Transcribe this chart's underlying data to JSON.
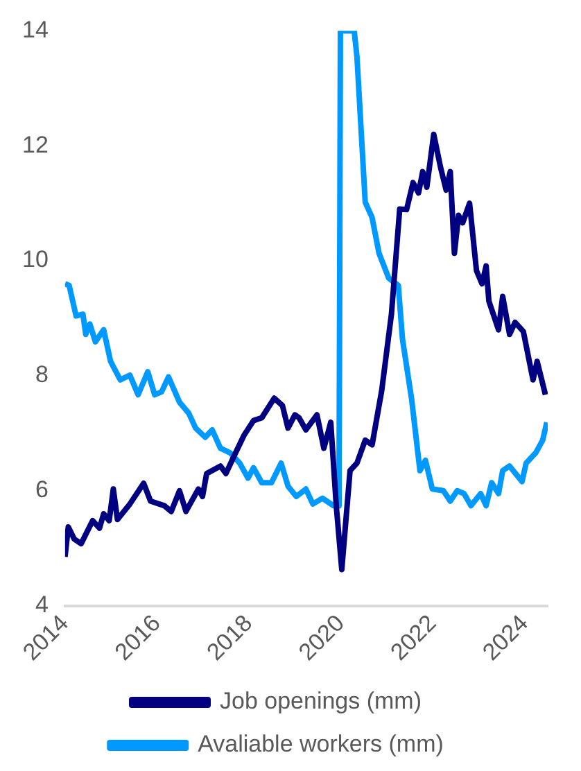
{
  "chart_data": {
    "type": "line",
    "xlim": [
      2014,
      2024.5
    ],
    "xticks": [
      2014,
      2016,
      2018,
      2020,
      2022,
      2024
    ],
    "ylim": [
      4,
      14
    ],
    "yticks": [
      4,
      6,
      8,
      10,
      12,
      14
    ],
    "grid": false,
    "legend": "bottom",
    "series": [
      {
        "name": "Job openings (mm)",
        "color": "#000080",
        "x": [
          2014.0,
          2014.07,
          2014.2,
          2014.35,
          2014.6,
          2014.75,
          2014.84,
          2014.96,
          2015.05,
          2015.14,
          2015.41,
          2015.71,
          2015.86,
          2016.16,
          2016.31,
          2016.49,
          2016.63,
          2016.9,
          2016.99,
          2017.08,
          2017.38,
          2017.5,
          2017.68,
          2017.89,
          2018.1,
          2018.28,
          2018.55,
          2018.73,
          2018.85,
          2019.0,
          2019.09,
          2019.24,
          2019.48,
          2019.63,
          2019.78,
          2019.9,
          2020.02,
          2020.2,
          2020.35,
          2020.53,
          2020.68,
          2020.89,
          2021.1,
          2021.28,
          2021.43,
          2021.57,
          2021.69,
          2021.78,
          2021.87,
          2022.02,
          2022.17,
          2022.29,
          2022.38,
          2022.47,
          2022.56,
          2022.65,
          2022.8,
          2022.95,
          2023.07,
          2023.16,
          2023.22,
          2023.43,
          2023.52,
          2023.67,
          2023.79,
          2023.97,
          2024.18,
          2024.27,
          2024.45
        ],
        "values": [
          4.85,
          5.37,
          5.16,
          5.08,
          5.48,
          5.35,
          5.6,
          5.48,
          6.03,
          5.5,
          5.77,
          6.13,
          5.82,
          5.74,
          5.64,
          6.0,
          5.64,
          6.03,
          5.9,
          6.3,
          6.43,
          6.3,
          6.61,
          6.96,
          7.22,
          7.27,
          7.61,
          7.48,
          7.09,
          7.32,
          7.27,
          7.06,
          7.32,
          6.74,
          7.19,
          5.74,
          4.63,
          6.35,
          6.48,
          6.88,
          6.8,
          7.75,
          9.07,
          10.9,
          10.89,
          11.36,
          11.18,
          11.55,
          11.28,
          12.2,
          11.62,
          11.23,
          11.55,
          10.13,
          10.79,
          10.66,
          11.0,
          9.83,
          9.6,
          9.91,
          9.3,
          8.8,
          9.38,
          8.72,
          8.93,
          8.77,
          7.93,
          8.25,
          7.67
        ]
      },
      {
        "name": "Avaliable workers (mm)",
        "color": "#0099ff",
        "x": [
          2014.0,
          2014.09,
          2014.24,
          2014.39,
          2014.45,
          2014.54,
          2014.66,
          2014.84,
          2014.99,
          2015.2,
          2015.41,
          2015.59,
          2015.8,
          2015.95,
          2016.1,
          2016.25,
          2016.49,
          2016.69,
          2016.84,
          2017.05,
          2017.2,
          2017.38,
          2017.59,
          2017.8,
          2017.98,
          2018.1,
          2018.28,
          2018.49,
          2018.7,
          2018.85,
          2019.03,
          2019.24,
          2019.39,
          2019.6,
          2019.84,
          2019.96,
          2019.99,
          2020.29,
          2020.35,
          2020.53,
          2020.68,
          2020.83,
          2021.04,
          2021.25,
          2021.34,
          2021.54,
          2021.72,
          2021.84,
          2021.99,
          2022.23,
          2022.38,
          2022.53,
          2022.68,
          2022.83,
          2023.04,
          2023.16,
          2023.28,
          2023.43,
          2023.52,
          2023.67,
          2023.94,
          2024.03,
          2024.24,
          2024.39,
          2024.48
        ],
        "values": [
          9.6,
          9.57,
          9.04,
          9.07,
          8.72,
          8.9,
          8.59,
          8.8,
          8.25,
          7.93,
          8.01,
          7.67,
          8.07,
          7.67,
          7.72,
          7.98,
          7.54,
          7.35,
          7.09,
          6.93,
          7.06,
          6.74,
          6.66,
          6.48,
          6.22,
          6.4,
          6.14,
          6.14,
          6.48,
          6.08,
          5.9,
          6.03,
          5.77,
          5.87,
          5.74,
          5.74,
          14,
          14,
          13.55,
          11.02,
          10.75,
          10.13,
          9.7,
          9.57,
          8.64,
          7.59,
          6.35,
          6.53,
          6.03,
          6.0,
          5.82,
          6.0,
          5.95,
          5.74,
          5.95,
          5.74,
          6.14,
          5.95,
          6.35,
          6.43,
          6.16,
          6.48,
          6.66,
          6.88,
          7.19
        ]
      }
    ]
  }
}
